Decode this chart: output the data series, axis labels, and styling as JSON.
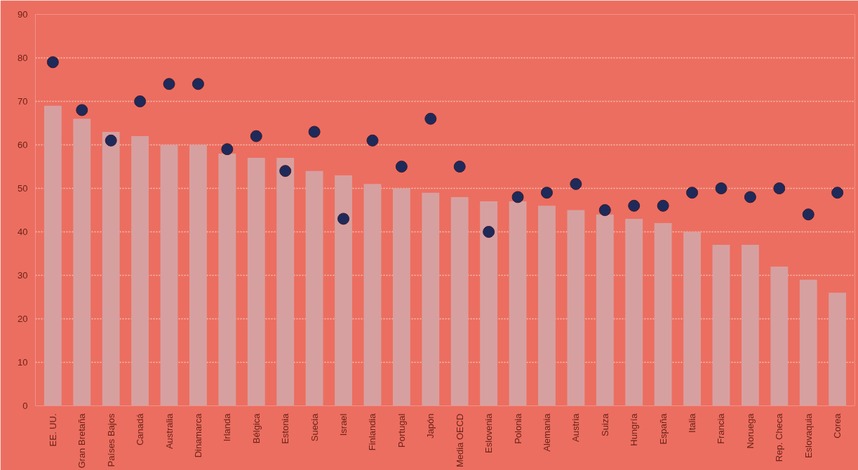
{
  "chart_data": {
    "type": "bar",
    "categories": [
      "EE. UU.",
      "Gran Bretaña",
      "Países Bajos",
      "Canadá",
      "Australia",
      "Dinamarca",
      "Irlanda",
      "Bélgica",
      "Estonia",
      "Suecia",
      "Israel",
      "Finlandia",
      "Portugal",
      "Japón",
      "Media OECD",
      "Eslovenia",
      "Polonia",
      "Alemania",
      "Austria",
      "Suiza",
      "Hungría",
      "España",
      "Italia",
      "Francia",
      "Noruega",
      "Rep. Checa",
      "Eslovaquia",
      "Corea"
    ],
    "series": [
      {
        "color": "#d7a0a0",
        "values": [
          69,
          66,
          63,
          62,
          60,
          60,
          58,
          57,
          57,
          54,
          53,
          51,
          50,
          49,
          48,
          47,
          47,
          46,
          45,
          44,
          43,
          42,
          40,
          37,
          37,
          32,
          29,
          26
        ]
      },
      {
        "type": "scatter",
        "color": "#1e2a5a",
        "values": [
          79,
          68,
          61,
          70,
          74,
          74,
          59,
          62,
          54,
          63,
          43,
          61,
          55,
          66,
          55,
          40,
          48,
          49,
          51,
          45,
          46,
          46,
          49,
          50,
          48,
          50,
          44,
          49
        ]
      }
    ],
    "ylim": [
      0,
      90
    ],
    "yticks": [
      0,
      10,
      20,
      30,
      40,
      50,
      60,
      70,
      80,
      90
    ],
    "grid": "y",
    "marker": "circle"
  }
}
